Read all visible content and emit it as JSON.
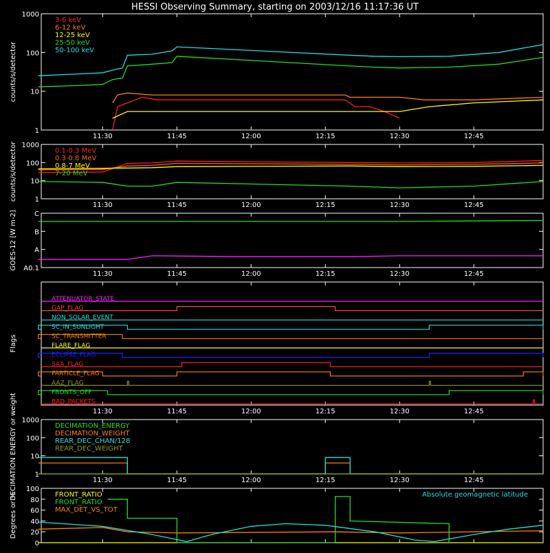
{
  "title": "HESSI Observing Summary, starting on 2003/12/16 11:17:36 UT",
  "time_axis": {
    "start_hhmm": "11:17:36",
    "end_hhmm": "12:59:00",
    "tick_labels": [
      "11:30",
      "11:45",
      "12:00",
      "12:15",
      "12:30",
      "12:45"
    ],
    "tick_times": [
      "11:30",
      "11:45",
      "12:00",
      "12:15",
      "12:30",
      "12:45"
    ]
  },
  "chart_data": [
    {
      "id": "low-energy",
      "type": "line",
      "ylabel": "counts/s/detector",
      "yscale": "log",
      "ylim": [
        1,
        1000
      ],
      "y_tick_labels": [
        "1",
        "10",
        "100",
        "1000"
      ],
      "y_tick_values": [
        1,
        10,
        100,
        1000
      ],
      "series": [
        {
          "name": "3-6 keV",
          "color": "#ff2020",
          "points": [
            [
              "11:32",
              "1"
            ],
            [
              "11:33",
              "4"
            ],
            [
              "11:35",
              "5"
            ],
            [
              "11:38",
              "7"
            ],
            [
              "11:41",
              "6"
            ],
            [
              "11:44",
              "6"
            ],
            [
              "11:45",
              "6"
            ],
            [
              "12:19",
              "6"
            ],
            [
              "12:21",
              "4"
            ],
            [
              "12:24",
              "4"
            ],
            [
              "12:27",
              "3"
            ],
            [
              "12:30",
              "2"
            ]
          ]
        },
        {
          "name": "6-12 keV",
          "color": "#ff8000",
          "points": [
            [
              "11:32",
              "5"
            ],
            [
              "11:33",
              "8"
            ],
            [
              "11:35",
              "9"
            ],
            [
              "11:40",
              "8"
            ],
            [
              "11:45",
              "8"
            ],
            [
              "12:19",
              "8"
            ],
            [
              "12:20",
              "7"
            ],
            [
              "12:25",
              "7"
            ],
            [
              "12:30",
              "7"
            ],
            [
              "12:35",
              "6"
            ],
            [
              "12:45",
              "6"
            ],
            [
              "12:59",
              "7"
            ]
          ]
        },
        {
          "name": "12-25 keV",
          "color": "#ffff00",
          "points": [
            [
              "11:32",
              "2"
            ],
            [
              "11:35",
              "3"
            ],
            [
              "11:40",
              "3"
            ],
            [
              "11:45",
              "3"
            ],
            [
              "12:19",
              "3"
            ],
            [
              "12:25",
              "3"
            ],
            [
              "12:30",
              "3"
            ],
            [
              "12:36",
              "4"
            ],
            [
              "12:45",
              "5"
            ],
            [
              "12:59",
              "6"
            ]
          ]
        },
        {
          "name": "25-50 keV",
          "color": "#20e020",
          "points": [
            [
              "11:17",
              "13"
            ],
            [
              "11:25",
              "14"
            ],
            [
              "11:30",
              "15"
            ],
            [
              "11:32",
              "20"
            ],
            [
              "11:34",
              "22"
            ],
            [
              "11:35",
              "45"
            ],
            [
              "11:40",
              "50"
            ],
            [
              "11:44",
              "55"
            ],
            [
              "11:45",
              "80"
            ],
            [
              "12:20",
              "45"
            ],
            [
              "12:25",
              "42"
            ],
            [
              "12:30",
              "40"
            ],
            [
              "12:40",
              "42"
            ],
            [
              "12:50",
              "50"
            ],
            [
              "12:59",
              "75"
            ]
          ]
        },
        {
          "name": "50-100 keV",
          "color": "#20e0e0",
          "points": [
            [
              "11:17",
              "25"
            ],
            [
              "11:25",
              "28"
            ],
            [
              "11:30",
              "30"
            ],
            [
              "11:32",
              "35"
            ],
            [
              "11:34",
              "40"
            ],
            [
              "11:35",
              "85"
            ],
            [
              "11:40",
              "90"
            ],
            [
              "11:44",
              "110"
            ],
            [
              "11:45",
              "140"
            ],
            [
              "12:20",
              "85"
            ],
            [
              "12:25",
              "80"
            ],
            [
              "12:30",
              "78"
            ],
            [
              "12:40",
              "80"
            ],
            [
              "12:50",
              "100"
            ],
            [
              "12:59",
              "160"
            ]
          ]
        }
      ]
    },
    {
      "id": "high-energy",
      "type": "line",
      "ylabel": "counts/s/detector",
      "yscale": "log",
      "ylim": [
        1,
        1000
      ],
      "y_tick_labels": [
        "1",
        "10",
        "100",
        "1000"
      ],
      "y_tick_values": [
        1,
        10,
        100,
        1000
      ],
      "series": [
        {
          "name": "0.1-0.3 MeV",
          "color": "#ff2020",
          "points": [
            [
              "11:17",
              "28"
            ],
            [
              "11:30",
              "30"
            ],
            [
              "11:35",
              "90"
            ],
            [
              "11:40",
              "95"
            ],
            [
              "11:45",
              "120"
            ],
            [
              "12:20",
              "100"
            ],
            [
              "12:30",
              "95"
            ],
            [
              "12:45",
              "100"
            ],
            [
              "12:59",
              "130"
            ]
          ]
        },
        {
          "name": "0.3-0.8 MeV",
          "color": "#ff6000",
          "points": [
            [
              "11:17",
              "40"
            ],
            [
              "11:30",
              "42"
            ],
            [
              "11:35",
              "65"
            ],
            [
              "11:40",
              "70"
            ],
            [
              "11:45",
              "90"
            ],
            [
              "12:20",
              "80"
            ],
            [
              "12:30",
              "75"
            ],
            [
              "12:45",
              "80"
            ],
            [
              "12:59",
              "95"
            ]
          ]
        },
        {
          "name": "0.8-7 MeV",
          "color": "#ffff00",
          "points": [
            [
              "11:17",
              "45"
            ],
            [
              "11:30",
              "48"
            ],
            [
              "11:35",
              "50"
            ],
            [
              "11:40",
              "52"
            ],
            [
              "11:45",
              "60"
            ],
            [
              "12:20",
              "65"
            ],
            [
              "12:30",
              "60"
            ],
            [
              "12:45",
              "62"
            ],
            [
              "12:59",
              "70"
            ]
          ]
        },
        {
          "name": "7-20 MeV",
          "color": "#20e020",
          "points": [
            [
              "11:17",
              "9"
            ],
            [
              "11:30",
              "8"
            ],
            [
              "11:35",
              "5"
            ],
            [
              "11:40",
              "5"
            ],
            [
              "11:45",
              "8"
            ],
            [
              "12:20",
              "5"
            ],
            [
              "12:30",
              "4"
            ],
            [
              "12:45",
              "5"
            ],
            [
              "12:59",
              "9"
            ]
          ]
        }
      ]
    },
    {
      "id": "goes",
      "type": "line",
      "ylabel": "GOES-12 [W m-2]",
      "y_tick_labels": [
        "A0.1",
        "A",
        "B",
        "C"
      ],
      "y_tick_values": [
        0,
        1,
        2,
        3
      ],
      "ylim": [
        0,
        3
      ],
      "series": [
        {
          "color": "#20e020",
          "points": [
            [
              "11:17",
              "2.55"
            ],
            [
              "11:40",
              "2.55"
            ],
            [
              "12:00",
              "2.55"
            ],
            [
              "12:30",
              "2.55"
            ],
            [
              "12:59",
              "2.6"
            ]
          ]
        },
        {
          "color": "#ff20ff",
          "points": [
            [
              "11:17",
              "0.45"
            ],
            [
              "11:35",
              "0.45"
            ],
            [
              "11:40",
              "0.65"
            ],
            [
              "12:00",
              "0.6"
            ],
            [
              "12:20",
              "0.6"
            ],
            [
              "12:30",
              "0.65"
            ],
            [
              "12:59",
              "0.65"
            ]
          ]
        }
      ]
    },
    {
      "id": "flags",
      "type": "line",
      "ylabel": "Flags",
      "flags": [
        {
          "name": "ATTENUATOR_STATE",
          "color": "#ff20ff",
          "on": []
        },
        {
          "name": "GAP_FLAG",
          "color": "#ff4040",
          "on": [
            [
              "11:45",
              "12:17"
            ]
          ]
        },
        {
          "name": "NON_SOLAR_EVENT",
          "color": "#20e0e0",
          "on": []
        },
        {
          "name": "SC_IN_SUNLIGHT",
          "color": "#20e0e0",
          "on": [
            [
              "11:17",
              "11:35"
            ],
            [
              "12:36",
              "12:59"
            ]
          ]
        },
        {
          "name": "SC_TRANSMITTER",
          "color": "#ff8000",
          "on": [
            [
              "11:17",
              "11:34"
            ]
          ]
        },
        {
          "name": "FLARE_FLAG",
          "color": "#ffff00",
          "on": []
        },
        {
          "name": "ECLIPSE_FLAG",
          "color": "#2020ff",
          "on": [
            [
              "11:17",
              "11:34"
            ],
            [
              "12:36",
              "12:59"
            ]
          ]
        },
        {
          "name": "SAA_FLAG",
          "color": "#ff2020",
          "on": [
            [
              "11:46",
              "12:16"
            ]
          ]
        },
        {
          "name": "PARTICLE_FLAG",
          "color": "#ff8000",
          "on": [
            [
              "11:17",
              "11:30"
            ],
            [
              "11:45",
              "12:16"
            ],
            [
              "12:55",
              "12:59"
            ]
          ]
        },
        {
          "name": "AAZ_FLAG",
          "color": "#999900",
          "on": [
            [
              "11:35",
              "11:35"
            ],
            [
              "12:36",
              "12:36"
            ]
          ]
        },
        {
          "name": "FRONTS_OFF",
          "color": "#20e020",
          "on": [
            [
              "11:17",
              "11:31"
            ],
            [
              "12:40",
              "12:59"
            ]
          ]
        },
        {
          "name": "BAD_PACKETS",
          "color": "#ff2020",
          "on": [
            [
              "12:57",
              "12:57"
            ]
          ]
        }
      ]
    },
    {
      "id": "decimation",
      "type": "line",
      "ylabel": "DECIMATION ENERGY or weight",
      "yscale": "log",
      "ylim": [
        1,
        1000
      ],
      "y_tick_labels": [
        "1",
        "10",
        "100",
        "1000"
      ],
      "y_tick_values": [
        1,
        10,
        100,
        1000
      ],
      "series": [
        {
          "name": "DECIMATION_ENERGY",
          "color": "#20e020",
          "points": [
            [
              "11:17",
              "1"
            ],
            [
              "12:59",
              "1"
            ]
          ]
        },
        {
          "name": "DECIMATION_WEIGHT",
          "color": "#ff8000",
          "points": [
            [
              "11:17",
              "4"
            ],
            [
              "11:35",
              "4"
            ],
            [
              "11:35",
              "1"
            ],
            [
              "12:15",
              "1"
            ],
            [
              "12:15",
              "4"
            ],
            [
              "12:20",
              "4"
            ],
            [
              "12:20",
              "1"
            ],
            [
              "12:59",
              "1"
            ]
          ]
        },
        {
          "name": "REAR_DEC_CHAN/128",
          "color": "#20e0e0",
          "points": [
            [
              "11:17",
              "8"
            ],
            [
              "11:35",
              "8"
            ],
            [
              "11:35",
              "1"
            ],
            [
              "12:15",
              "1"
            ],
            [
              "12:15",
              "8"
            ],
            [
              "12:20",
              "8"
            ],
            [
              "12:20",
              "1"
            ],
            [
              "12:59",
              "1"
            ]
          ]
        },
        {
          "name": "REAR_DEC_WEIGHT",
          "color": "#999900",
          "points": [
            [
              "11:17",
              "1"
            ],
            [
              "12:59",
              "1"
            ]
          ]
        }
      ]
    },
    {
      "id": "ratio",
      "type": "line",
      "ylabel": "Degrees or %",
      "ylim": [
        0,
        100
      ],
      "y_tick_labels": [
        "0",
        "20",
        "40",
        "60",
        "80",
        "100"
      ],
      "y_tick_values": [
        0,
        20,
        40,
        60,
        80,
        100
      ],
      "annotation": "Absolute geomagnetic latitude",
      "annotation_color": "#20e0e0",
      "series": [
        {
          "name": "FRONT_RATIO",
          "color": "#ffff00",
          "points": [
            [
              "11:17",
              "0"
            ],
            [
              "12:59",
              "0"
            ]
          ]
        },
        {
          "name": "FRONT_RATIO",
          "color": "#20e020",
          "points": [
            [
              "11:31",
              "80"
            ],
            [
              "11:35",
              "80"
            ],
            [
              "11:35",
              "45"
            ],
            [
              "11:45",
              "45"
            ],
            [
              "11:45",
              "0"
            ],
            [
              "12:17",
              "0"
            ],
            [
              "12:17",
              "85"
            ],
            [
              "12:20",
              "85"
            ],
            [
              "12:20",
              "40"
            ],
            [
              "12:40",
              "35"
            ],
            [
              "12:40",
              "0"
            ]
          ]
        },
        {
          "name": "MAX_DET_VS_TOT",
          "color": "#ff8000",
          "points": [
            [
              "11:17",
              "25"
            ],
            [
              "11:30",
              "28"
            ],
            [
              "11:35",
              "20"
            ],
            [
              "11:45",
              "18"
            ],
            [
              "12:17",
              "20"
            ],
            [
              "12:30",
              "18"
            ],
            [
              "12:45",
              "20"
            ],
            [
              "12:59",
              "22"
            ]
          ]
        },
        {
          "name": "",
          "color": "#20e0e0",
          "points": [
            [
              "11:17",
              "38"
            ],
            [
              "11:30",
              "30"
            ],
            [
              "11:40",
              "15"
            ],
            [
              "11:47",
              "2"
            ],
            [
              "11:52",
              "15"
            ],
            [
              "12:00",
              "30"
            ],
            [
              "12:07",
              "35"
            ],
            [
              "12:15",
              "32"
            ],
            [
              "12:25",
              "20"
            ],
            [
              "12:33",
              "5"
            ],
            [
              "12:37",
              "2"
            ],
            [
              "12:45",
              "15"
            ],
            [
              "12:52",
              "25"
            ],
            [
              "12:59",
              "32"
            ]
          ]
        }
      ]
    }
  ]
}
